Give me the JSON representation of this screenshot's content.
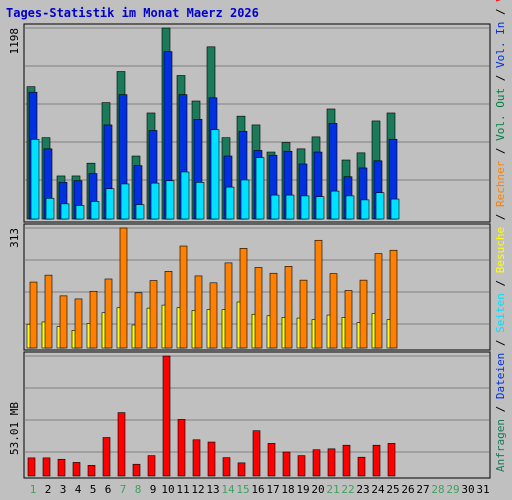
{
  "title": "Tages-Statistik im Monat Maerz 2026",
  "colors": {
    "background": "#c0c0c0",
    "title": "#0000cc",
    "grid": "#808080",
    "weekday_label": "#008040",
    "weekend_label": "#40a060",
    "anfragen": "#1a7a5a",
    "dateien": "#0030e0",
    "seiten": "#00e0ff",
    "besuche": "#ffff00",
    "rechner": "#ff8000",
    "volumen": "#ff0000"
  },
  "chart_data": [
    {
      "type": "bar",
      "name": "hits",
      "ymax_label": "1198",
      "ylim": [
        0,
        1198
      ],
      "categories": [
        1,
        2,
        3,
        4,
        5,
        6,
        7,
        8,
        9,
        10,
        11,
        12,
        13,
        14,
        15,
        16,
        17,
        18,
        19,
        20,
        21,
        22,
        23,
        24,
        25
      ],
      "series": [
        {
          "name": "Anfragen",
          "color": "#1a7a5a",
          "values": [
            830,
            510,
            270,
            270,
            350,
            730,
            925,
            395,
            665,
            1198,
            900,
            740,
            1080,
            510,
            645,
            590,
            420,
            480,
            440,
            515,
            690,
            370,
            415,
            615,
            665
          ]
        },
        {
          "name": "Dateien",
          "color": "#0030e0",
          "values": [
            795,
            440,
            230,
            240,
            285,
            590,
            780,
            335,
            555,
            1050,
            780,
            625,
            760,
            395,
            550,
            430,
            400,
            425,
            345,
            420,
            600,
            265,
            320,
            365,
            500
          ]
        },
        {
          "name": "Seiten",
          "color": "#00e0ff",
          "values": [
            500,
            130,
            95,
            85,
            110,
            190,
            220,
            90,
            225,
            240,
            295,
            230,
            560,
            200,
            245,
            385,
            150,
            150,
            145,
            140,
            175,
            145,
            120,
            165,
            125
          ]
        }
      ]
    },
    {
      "type": "bar",
      "name": "visits",
      "ymax_label": "313",
      "ylim": [
        0,
        313
      ],
      "categories": [
        1,
        2,
        3,
        4,
        5,
        6,
        7,
        8,
        9,
        10,
        11,
        12,
        13,
        14,
        15,
        16,
        17,
        18,
        19,
        20,
        21,
        22,
        23,
        24,
        25
      ],
      "series": [
        {
          "name": "Rechner",
          "color": "#ff8000",
          "values": [
            172,
            190,
            136,
            128,
            148,
            180,
            313,
            144,
            176,
            200,
            266,
            188,
            170,
            222,
            260,
            210,
            195,
            213,
            177,
            281,
            194,
            150,
            177,
            246,
            255
          ]
        },
        {
          "name": "Besuche",
          "color": "#ffff00",
          "values": [
            62,
            68,
            56,
            46,
            64,
            92,
            105,
            60,
            104,
            112,
            105,
            98,
            100,
            100,
            120,
            88,
            84,
            80,
            78,
            74,
            86,
            80,
            66,
            90,
            74
          ]
        }
      ]
    },
    {
      "type": "bar",
      "name": "volume",
      "ymax_label": "53.01 MB",
      "ylim": [
        0,
        53.01
      ],
      "categories": [
        1,
        2,
        3,
        4,
        5,
        6,
        7,
        8,
        9,
        10,
        11,
        12,
        13,
        14,
        15,
        16,
        17,
        18,
        19,
        20,
        21,
        22,
        23,
        24,
        25
      ],
      "series": [
        {
          "name": "Volumen",
          "color": "#ff0000",
          "values": [
            8.0,
            8.0,
            7.4,
            6.0,
            4.7,
            17.0,
            28.0,
            5.2,
            9.0,
            53.0,
            25.0,
            16.0,
            15.0,
            8.1,
            5.8,
            20.0,
            14.4,
            10.6,
            9.0,
            11.6,
            12.0,
            13.6,
            8.3,
            13.6,
            14.4
          ]
        }
      ]
    }
  ],
  "x_axis": {
    "days": [
      1,
      2,
      3,
      4,
      5,
      6,
      7,
      8,
      9,
      10,
      11,
      12,
      13,
      14,
      15,
      16,
      17,
      18,
      19,
      20,
      21,
      22,
      23,
      24,
      25,
      26,
      27,
      28,
      29,
      30,
      31
    ],
    "weekend_days": [
      1,
      7,
      8,
      14,
      15,
      21,
      22,
      28,
      29
    ]
  },
  "legend_right": [
    {
      "text": "Anfragen",
      "color": "#1a7a5a"
    },
    {
      "text": " / ",
      "color": "#000000"
    },
    {
      "text": "Dateien",
      "color": "#0030e0"
    },
    {
      "text": " / ",
      "color": "#000000"
    },
    {
      "text": "Seiten",
      "color": "#00e0ff"
    },
    {
      "text": " / ",
      "color": "#000000"
    },
    {
      "text": "Besuche",
      "color": "#ffff00"
    },
    {
      "text": " / ",
      "color": "#000000"
    },
    {
      "text": "Rechner",
      "color": "#ff8000"
    },
    {
      "text": " / ",
      "color": "#000000"
    },
    {
      "text": "Vol. Out",
      "color": "#008040"
    },
    {
      "text": " / ",
      "color": "#000000"
    },
    {
      "text": "Vol. In",
      "color": "#0030e0"
    },
    {
      "text": " / ",
      "color": "#000000"
    },
    {
      "text": "Volumen",
      "color": "#ff0000"
    }
  ]
}
